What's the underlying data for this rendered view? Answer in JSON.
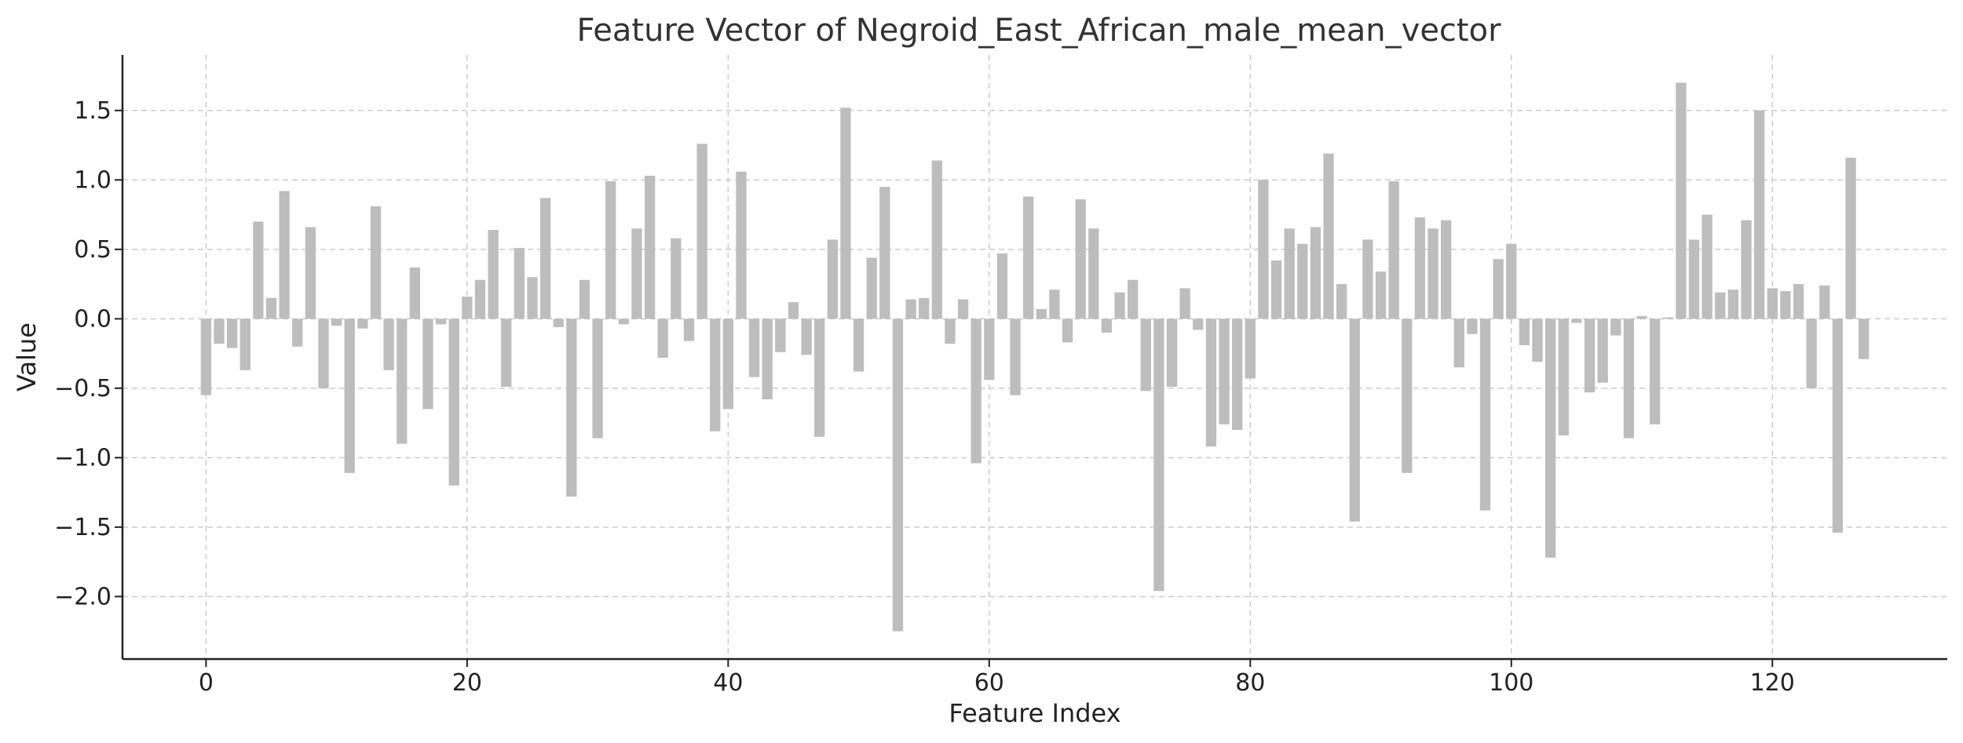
{
  "chart_data": {
    "type": "bar",
    "title": "Feature Vector of Negroid_East_African_male_mean_vector",
    "xlabel": "Feature Index",
    "ylabel": "Value",
    "xlim": [
      -6.4,
      133.4
    ],
    "ylim": [
      -2.45,
      1.9
    ],
    "xticks": [
      0,
      20,
      40,
      60,
      80,
      100,
      120
    ],
    "yticks": [
      1.5,
      1.0,
      0.5,
      0.0,
      -0.5,
      -1.0,
      -1.5,
      -2.0
    ],
    "ytick_labels": [
      "1.5",
      "1.0",
      "0.5",
      "0.0",
      "−0.5",
      "−1.0",
      "−1.5",
      "−2.0"
    ],
    "grid": true,
    "bar_color": "#bdbdbd",
    "x": [
      0,
      1,
      2,
      3,
      4,
      5,
      6,
      7,
      8,
      9,
      10,
      11,
      12,
      13,
      14,
      15,
      16,
      17,
      18,
      19,
      20,
      21,
      22,
      23,
      24,
      25,
      26,
      27,
      28,
      29,
      30,
      31,
      32,
      33,
      34,
      35,
      36,
      37,
      38,
      39,
      40,
      41,
      42,
      43,
      44,
      45,
      46,
      47,
      48,
      49,
      50,
      51,
      52,
      53,
      54,
      55,
      56,
      57,
      58,
      59,
      60,
      61,
      62,
      63,
      64,
      65,
      66,
      67,
      68,
      69,
      70,
      71,
      72,
      73,
      74,
      75,
      76,
      77,
      78,
      79,
      80,
      81,
      82,
      83,
      84,
      85,
      86,
      87,
      88,
      89,
      90,
      91,
      92,
      93,
      94,
      95,
      96,
      97,
      98,
      99,
      100,
      101,
      102,
      103,
      104,
      105,
      106,
      107,
      108,
      109,
      110,
      111,
      112,
      113,
      114,
      115,
      116,
      117,
      118,
      119,
      120,
      121,
      122,
      123,
      124,
      125,
      126,
      127
    ],
    "values": [
      -0.55,
      -0.18,
      -0.21,
      -0.37,
      0.7,
      0.15,
      0.92,
      -0.2,
      0.66,
      -0.5,
      -0.05,
      -1.11,
      -0.07,
      0.81,
      -0.37,
      -0.9,
      0.37,
      -0.65,
      -0.04,
      -1.2,
      0.16,
      0.28,
      0.64,
      -0.49,
      0.51,
      0.3,
      0.87,
      -0.06,
      -1.28,
      0.28,
      -0.86,
      0.99,
      -0.04,
      0.65,
      1.03,
      -0.28,
      0.58,
      -0.16,
      1.26,
      -0.81,
      -0.65,
      1.06,
      -0.42,
      -0.58,
      -0.24,
      0.12,
      -0.26,
      -0.85,
      0.57,
      1.52,
      -0.38,
      0.44,
      0.95,
      -2.25,
      0.14,
      0.15,
      1.14,
      -0.18,
      0.14,
      -1.04,
      -0.44,
      0.47,
      -0.55,
      0.88,
      0.07,
      0.21,
      -0.17,
      0.86,
      0.65,
      -0.1,
      0.19,
      0.28,
      -0.52,
      -1.96,
      -0.49,
      0.22,
      -0.08,
      -0.92,
      -0.76,
      -0.8,
      -0.43,
      1.0,
      0.42,
      0.65,
      0.54,
      0.66,
      1.19,
      0.25,
      -1.46,
      0.57,
      0.34,
      0.99,
      -1.11,
      0.73,
      0.65,
      0.71,
      -0.35,
      -0.11,
      -1.38,
      0.43,
      0.54,
      -0.19,
      -0.31,
      -1.72,
      -0.84,
      -0.03,
      -0.53,
      -0.46,
      -0.12,
      -0.86,
      0.02,
      -0.76,
      0.01,
      1.7,
      0.57,
      0.75,
      0.19,
      0.21,
      0.71,
      1.5,
      0.22,
      0.2,
      0.25,
      -0.5,
      0.24,
      -1.54,
      1.16,
      -0.29
    ]
  }
}
